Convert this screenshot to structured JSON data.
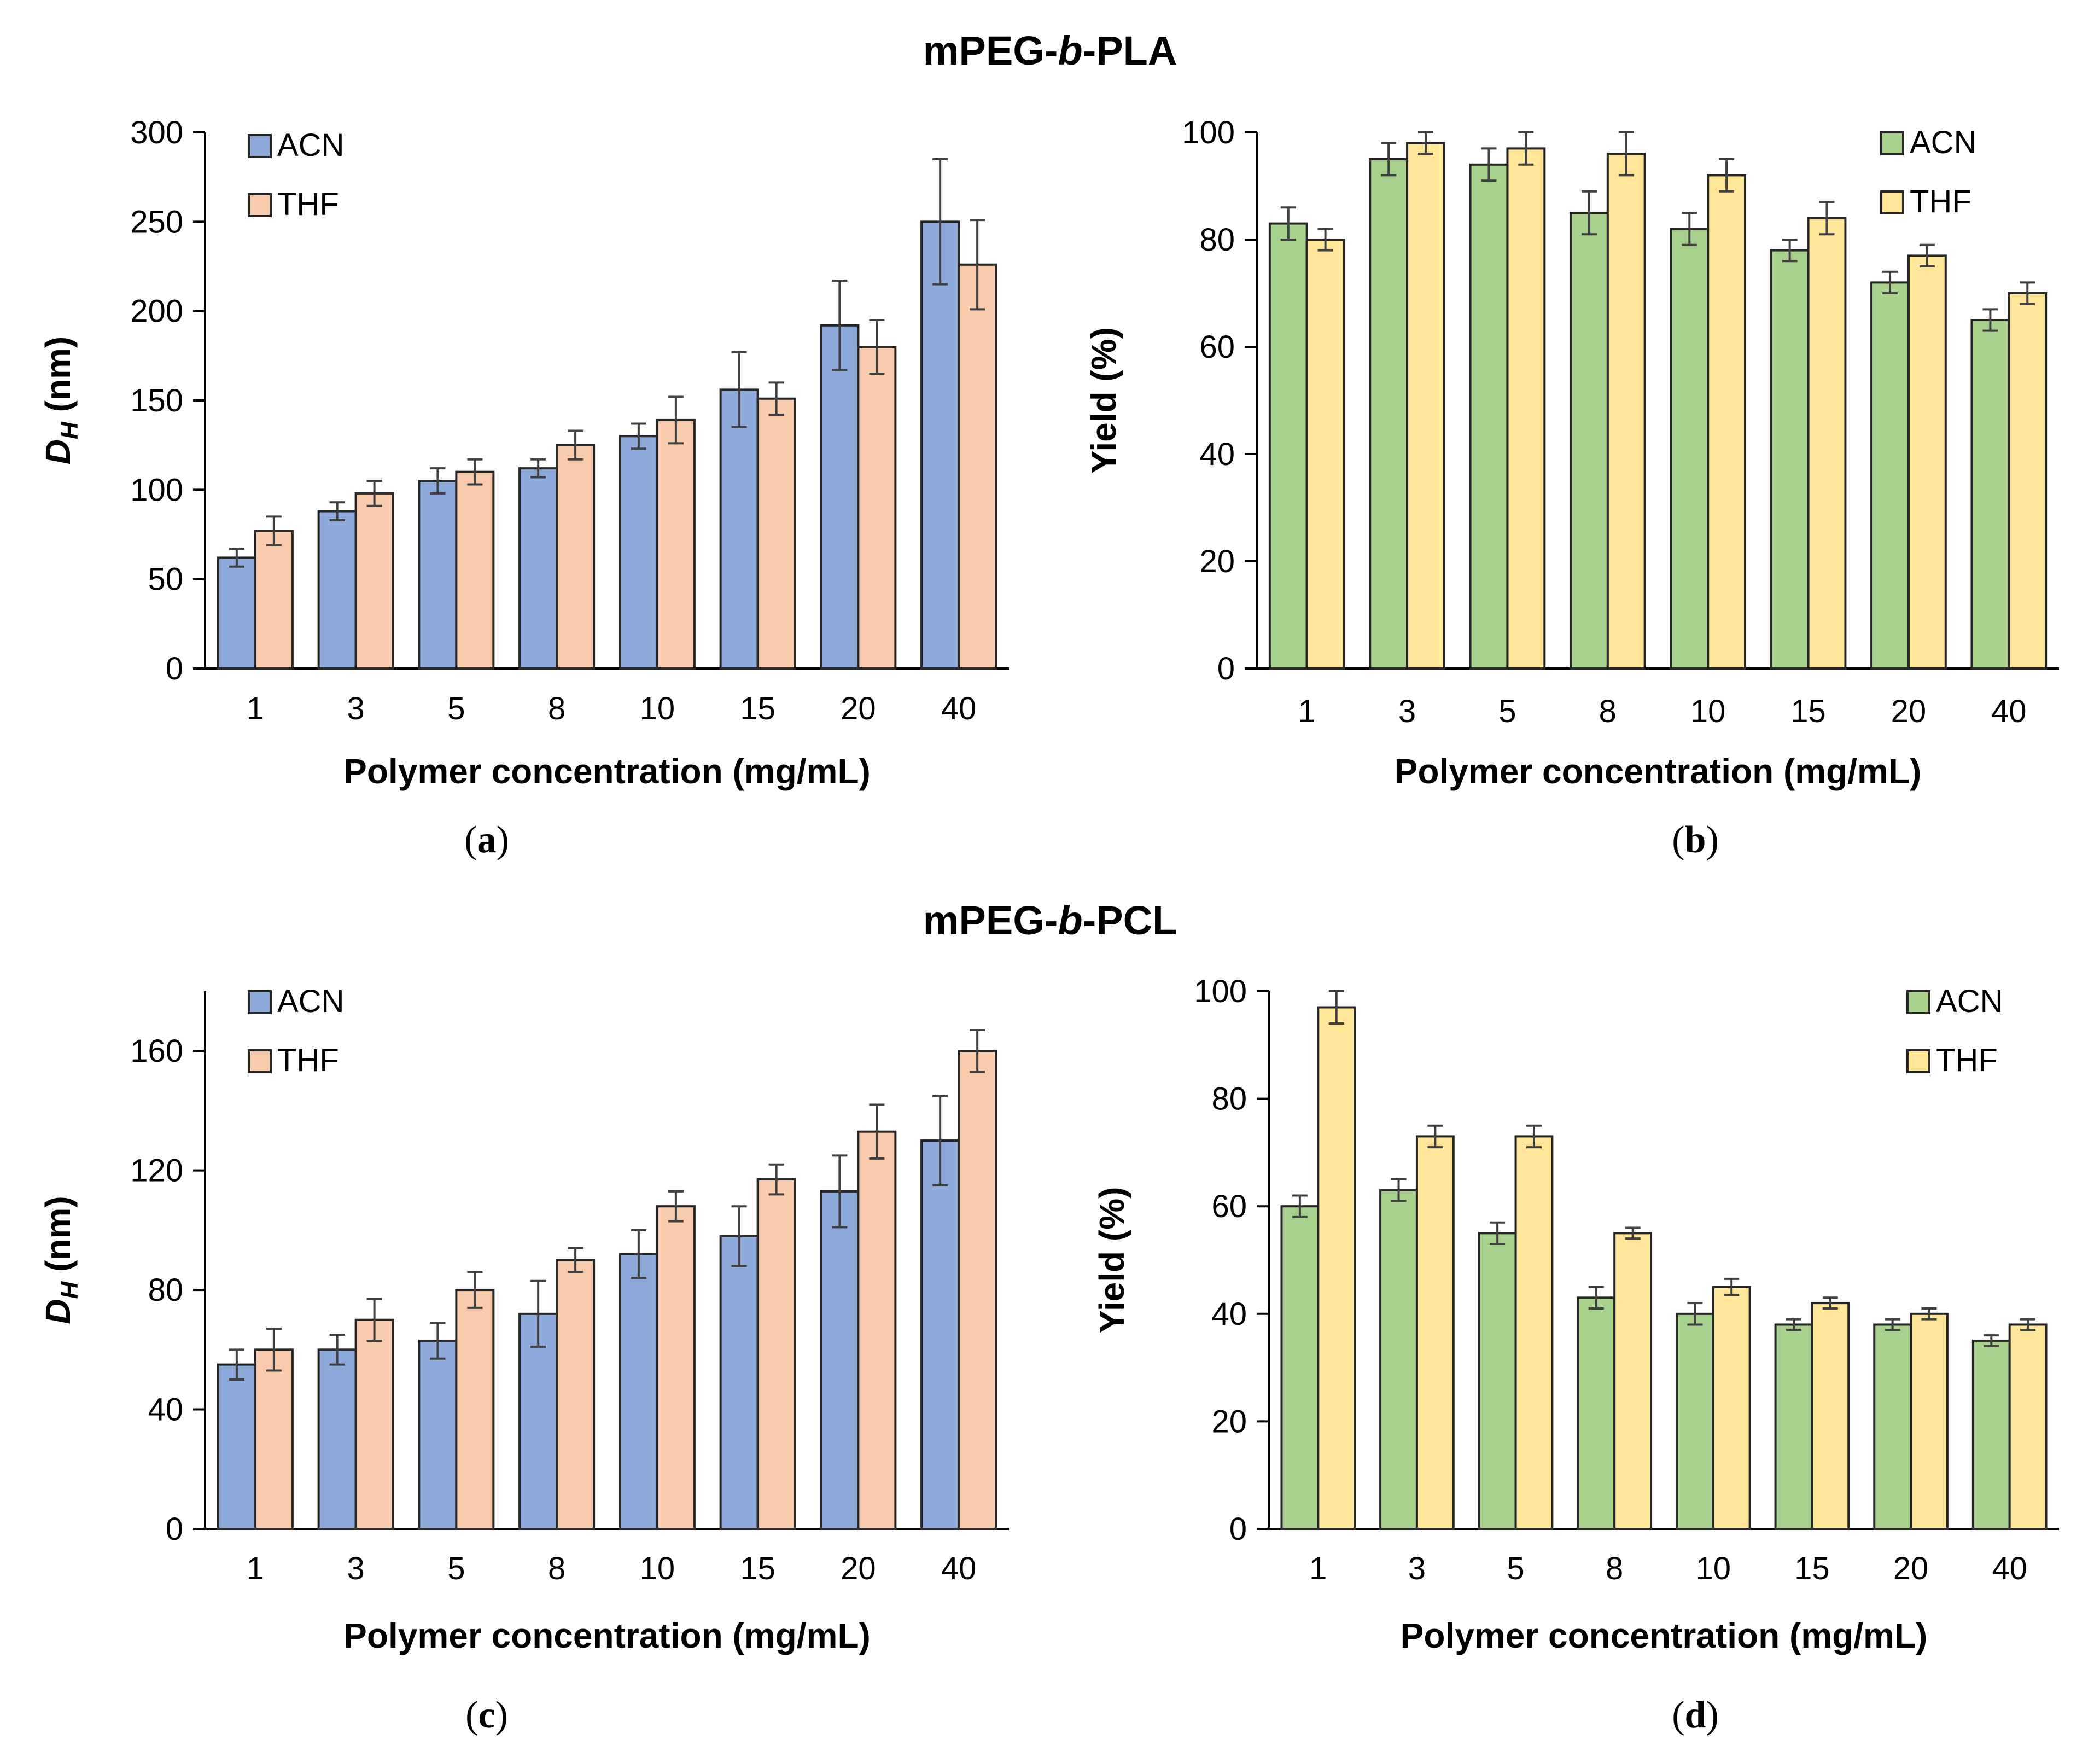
{
  "figure": {
    "section_top": {
      "prefix": "mPEG-",
      "italic": "b",
      "suffix": "-PLA"
    },
    "section_bottom": {
      "prefix": "mPEG-",
      "italic": "b",
      "suffix": "-PCL"
    },
    "panel_labels": {
      "a": {
        "open": "(",
        "letter": "a",
        "close": ")"
      },
      "b": {
        "open": "(",
        "letter": "b",
        "close": ")"
      },
      "c": {
        "open": "(",
        "letter": "c",
        "close": ")"
      },
      "d": {
        "open": "(",
        "letter": "d",
        "close": ")"
      }
    }
  },
  "chart_data": [
    {
      "id": "a",
      "type": "bar",
      "categories": [
        "1",
        "3",
        "5",
        "8",
        "10",
        "15",
        "20",
        "40"
      ],
      "xlabel": "Polymer concentration (mg/mL)",
      "ylabel": {
        "main": "D",
        "sub": "H",
        "rest": " (nm)"
      },
      "ylim": [
        0,
        300
      ],
      "yticks": [
        0,
        50,
        100,
        150,
        200,
        250,
        300
      ],
      "legend_position": "top-left",
      "series": [
        {
          "name": "ACN",
          "color": "#8eaadb",
          "values": [
            62,
            88,
            105,
            112,
            130,
            156,
            192,
            250
          ],
          "errors": [
            5,
            5,
            7,
            5,
            7,
            21,
            25,
            35
          ]
        },
        {
          "name": "THF",
          "color": "#f8cbad",
          "values": [
            77,
            98,
            110,
            125,
            139,
            151,
            180,
            226
          ],
          "errors": [
            8,
            7,
            7,
            8,
            13,
            9,
            15,
            25
          ]
        }
      ]
    },
    {
      "id": "b",
      "type": "bar",
      "categories": [
        "1",
        "3",
        "5",
        "8",
        "10",
        "15",
        "20",
        "40"
      ],
      "xlabel": "Polymer concentration (mg/mL)",
      "ylabel": {
        "main": "Yield (%)"
      },
      "ylim": [
        0,
        100
      ],
      "yticks": [
        0,
        20,
        40,
        60,
        80,
        100
      ],
      "legend_position": "top-right",
      "series": [
        {
          "name": "ACN",
          "color": "#a9d18e",
          "values": [
            83,
            95,
            94,
            85,
            82,
            78,
            72,
            65
          ],
          "errors": [
            3,
            3,
            3,
            4,
            3,
            2,
            2,
            2
          ]
        },
        {
          "name": "THF",
          "color": "#ffe699",
          "values": [
            80,
            98,
            97,
            96,
            92,
            84,
            77,
            70
          ],
          "errors": [
            2,
            2,
            3,
            4,
            3,
            3,
            2,
            2
          ]
        }
      ]
    },
    {
      "id": "c",
      "type": "bar",
      "categories": [
        "1",
        "3",
        "5",
        "8",
        "10",
        "15",
        "20",
        "40"
      ],
      "xlabel": "Polymer concentration (mg/mL)",
      "ylabel": {
        "main": "D",
        "sub": "H",
        "rest": " (nm)"
      },
      "ylim": [
        0,
        180
      ],
      "yticks": [
        0,
        40,
        80,
        120,
        160
      ],
      "legend_position": "top-left",
      "series": [
        {
          "name": "ACN",
          "color": "#8eaadb",
          "values": [
            55,
            60,
            63,
            72,
            92,
            98,
            113,
            130
          ],
          "errors": [
            5,
            5,
            6,
            11,
            8,
            10,
            12,
            15
          ]
        },
        {
          "name": "THF",
          "color": "#f8cbad",
          "values": [
            60,
            70,
            80,
            90,
            108,
            117,
            133,
            160
          ],
          "errors": [
            7,
            7,
            6,
            4,
            5,
            5,
            9,
            7
          ]
        }
      ]
    },
    {
      "id": "d",
      "type": "bar",
      "categories": [
        "1",
        "3",
        "5",
        "8",
        "10",
        "15",
        "20",
        "40"
      ],
      "xlabel": "Polymer concentration (mg/mL)",
      "ylabel": {
        "main": "Yield (%)"
      },
      "ylim": [
        0,
        100
      ],
      "yticks": [
        0,
        20,
        40,
        60,
        80,
        100
      ],
      "legend_position": "top-right",
      "series": [
        {
          "name": "ACN",
          "color": "#a9d18e",
          "values": [
            60,
            63,
            55,
            43,
            40,
            38,
            38,
            35
          ],
          "errors": [
            2,
            2,
            2,
            2,
            2,
            1,
            1,
            1
          ]
        },
        {
          "name": "THF",
          "color": "#ffe699",
          "values": [
            97,
            73,
            73,
            55,
            45,
            42,
            40,
            38
          ],
          "errors": [
            3,
            2,
            2,
            1,
            1.5,
            1,
            1,
            1
          ]
        }
      ]
    }
  ]
}
